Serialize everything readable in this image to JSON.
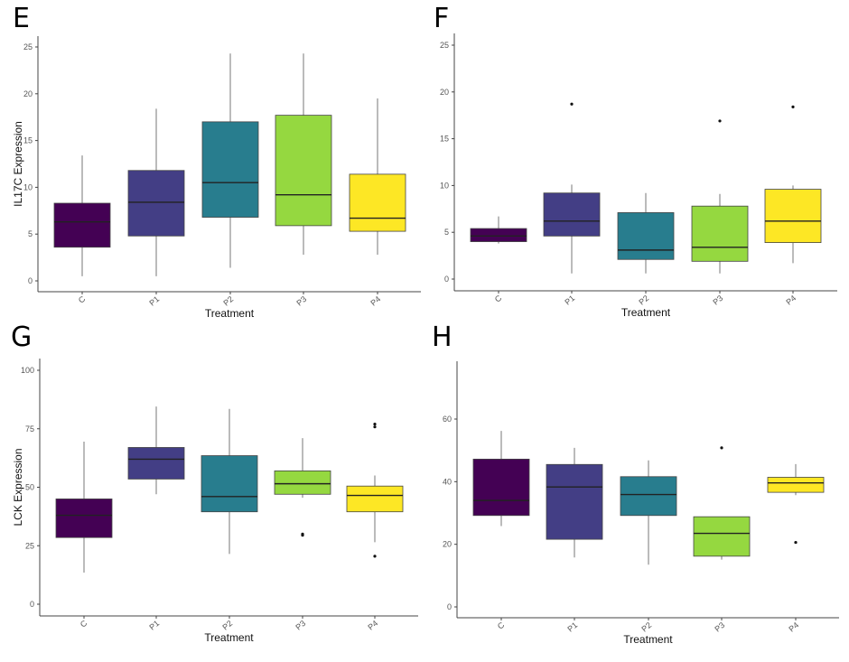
{
  "colors": {
    "C": "#440154",
    "P1": "#433E85",
    "P2": "#287D8E",
    "P3": "#95D840",
    "P4": "#FDE725"
  },
  "chart_data": [
    {
      "type": "box",
      "panel": "E",
      "ylabel": "IL17C Expression",
      "xlabel": "Treatment",
      "categories": [
        "C",
        "P1",
        "P2",
        "P3",
        "P4"
      ],
      "ylim": [
        -1,
        26
      ],
      "yticks": [
        0,
        5,
        10,
        15,
        20,
        25
      ],
      "boxes": [
        {
          "min": 0.5,
          "q1": 3.6,
          "median": 6.3,
          "q3": 8.3,
          "max": 13.4,
          "outliers": []
        },
        {
          "min": 0.5,
          "q1": 4.8,
          "median": 8.4,
          "q3": 11.8,
          "max": 18.4,
          "outliers": []
        },
        {
          "min": 1.4,
          "q1": 6.8,
          "median": 10.5,
          "q3": 17.0,
          "max": 24.3,
          "outliers": []
        },
        {
          "min": 2.8,
          "q1": 5.9,
          "median": 9.2,
          "q3": 17.7,
          "max": 24.3,
          "outliers": []
        },
        {
          "min": 2.8,
          "q1": 5.3,
          "median": 6.7,
          "q3": 11.4,
          "max": 19.5,
          "outliers": []
        }
      ]
    },
    {
      "type": "box",
      "panel": "F",
      "ylabel": "",
      "xlabel": "Treatment",
      "categories": [
        "C",
        "P1",
        "P2",
        "P3",
        "P4"
      ],
      "ylim": [
        -1,
        26
      ],
      "yticks": [
        0,
        5,
        10,
        15,
        20,
        25
      ],
      "boxes": [
        {
          "min": 3.8,
          "q1": 4.0,
          "median": 4.6,
          "q3": 5.4,
          "max": 6.7,
          "outliers": []
        },
        {
          "min": 0.6,
          "q1": 4.6,
          "median": 6.2,
          "q3": 9.2,
          "max": 10.1,
          "outliers": [
            18.7
          ]
        },
        {
          "min": 0.6,
          "q1": 2.1,
          "median": 3.1,
          "q3": 7.1,
          "max": 9.2,
          "outliers": []
        },
        {
          "min": 0.6,
          "q1": 1.9,
          "median": 3.4,
          "q3": 7.8,
          "max": 9.1,
          "outliers": [
            16.9
          ]
        },
        {
          "min": 1.7,
          "q1": 3.9,
          "median": 6.2,
          "q3": 9.6,
          "max": 10.0,
          "outliers": [
            18.4
          ]
        }
      ]
    },
    {
      "type": "box",
      "panel": "G",
      "ylabel": "LCK Expression",
      "xlabel": "Treatment",
      "categories": [
        "C",
        "P1",
        "P2",
        "P3",
        "P4"
      ],
      "ylim": [
        -5,
        105
      ],
      "yticks": [
        0,
        25,
        50,
        75,
        100
      ],
      "boxes": [
        {
          "min": 13.5,
          "q1": 28.5,
          "median": 38,
          "q3": 45,
          "max": 69.5,
          "outliers": []
        },
        {
          "min": 47,
          "q1": 53.5,
          "median": 62,
          "q3": 67,
          "max": 84.5,
          "outliers": []
        },
        {
          "min": 21.5,
          "q1": 39.5,
          "median": 46,
          "q3": 63.5,
          "max": 83.5,
          "outliers": []
        },
        {
          "min": 45.5,
          "q1": 47,
          "median": 51.5,
          "q3": 57,
          "max": 71,
          "outliers": [
            30,
            29.5
          ]
        },
        {
          "min": 26.5,
          "q1": 39.5,
          "median": 46.5,
          "q3": 50.5,
          "max": 55,
          "outliers": [
            77,
            75.8,
            20.5
          ]
        }
      ]
    },
    {
      "type": "box",
      "panel": "H",
      "ylabel": "",
      "xlabel": "Treatment",
      "categories": [
        "C",
        "P1",
        "P2",
        "P3",
        "P4"
      ],
      "ylim": [
        -4,
        79
      ],
      "yticks": [
        0,
        20,
        40,
        60
      ],
      "boxes": [
        {
          "min": 25.8,
          "q1": 29.2,
          "median": 34,
          "q3": 47.2,
          "max": 56.2,
          "outliers": []
        },
        {
          "min": 15.8,
          "q1": 21.6,
          "median": 38.3,
          "q3": 45.5,
          "max": 50.8,
          "outliers": []
        },
        {
          "min": 13.5,
          "q1": 29.2,
          "median": 35.9,
          "q3": 41.6,
          "max": 46.8,
          "outliers": []
        },
        {
          "min": 15.1,
          "q1": 16.2,
          "median": 23.5,
          "q3": 28.8,
          "max": 28.8,
          "outliers": [
            50.8
          ]
        },
        {
          "min": 35.7,
          "q1": 36.6,
          "median": 39.6,
          "q3": 41.4,
          "max": 45.6,
          "outliers": [
            20.6
          ]
        }
      ]
    }
  ]
}
